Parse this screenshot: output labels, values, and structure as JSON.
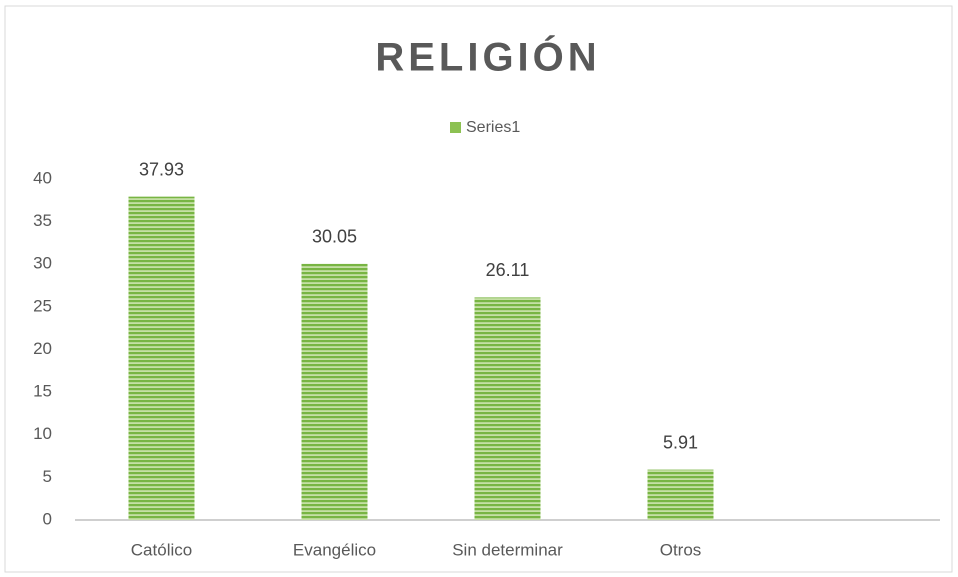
{
  "chart_data": {
    "type": "bar",
    "title": "RELIGIÓN",
    "categories": [
      "Católico",
      "Evangélico",
      "Sin determinar",
      "Otros",
      null
    ],
    "series": [
      {
        "name": "Series1",
        "color": "#8cc152",
        "values": [
          37.93,
          30.05,
          26.11,
          5.91,
          null
        ]
      }
    ],
    "ylim": [
      0,
      40
    ],
    "yticks": [
      0,
      5,
      10,
      15,
      20,
      25,
      30,
      35,
      40
    ],
    "grid": false,
    "legend": "top"
  }
}
